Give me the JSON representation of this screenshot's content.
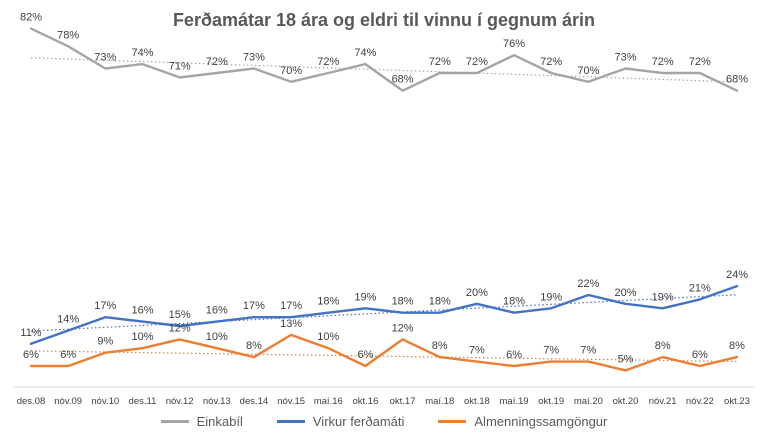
{
  "chart_data": {
    "type": "line",
    "title": "Ferðamátar 18 ára og eldri til vinnu í gegnum árin",
    "categories": [
      "des.08",
      "nóv.09",
      "nóv.10",
      "des.11",
      "nóv.12",
      "nóv.13",
      "des.14",
      "nóv.15",
      "maí.16",
      "okt.16",
      "okt.17",
      "maí.18",
      "okt.18",
      "maí.19",
      "okt.19",
      "maí.20",
      "okt.20",
      "nóv.21",
      "nóv.22",
      "okt.23"
    ],
    "series": [
      {
        "name": "Einkabíl",
        "color": "#a5a5a5",
        "values": [
          82,
          78,
          73,
          74,
          71,
          72,
          73,
          70,
          72,
          74,
          68,
          72,
          72,
          76,
          72,
          70,
          73,
          72,
          72,
          68
        ],
        "labels": [
          "82%",
          "78%",
          "73%",
          "74%",
          "71%",
          "72%",
          "73%",
          "70%",
          "72%",
          "74%",
          "68%",
          "72%",
          "72%",
          "76%",
          "72%",
          "70%",
          "73%",
          "72%",
          "72%",
          "68%"
        ]
      },
      {
        "name": "Virkur ferðamáti",
        "color": "#4472c4",
        "values": [
          11,
          14,
          17,
          16,
          15,
          16,
          17,
          17,
          18,
          19,
          18,
          18,
          20,
          18,
          19,
          22,
          20,
          19,
          21,
          24
        ],
        "labels": [
          "11%",
          "14%",
          "17%",
          "16%",
          "15%",
          "16%",
          "17%",
          "17%",
          "18%",
          "19%",
          "18%",
          "18%",
          "20%",
          "18%",
          "19%",
          "22%",
          "20%",
          "19%",
          "21%",
          "24%"
        ]
      },
      {
        "name": "Almenningssamgöngur",
        "color": "#ed7d31",
        "values": [
          6,
          6,
          9,
          10,
          12,
          10,
          8,
          13,
          10,
          6,
          12,
          8,
          7,
          6,
          7,
          7,
          5,
          8,
          6,
          8
        ],
        "labels": [
          "6%",
          "6%",
          "9%",
          "10%",
          "12%",
          "10%",
          "8%",
          "13%",
          "10%",
          "6%",
          "12%",
          "8%",
          "7%",
          "6%",
          "7%",
          "7%",
          "5%",
          "8%",
          "6%",
          "8%"
        ]
      }
    ],
    "trendlines": true,
    "grid": false,
    "legend_position": "bottom",
    "ylim": [
      0,
      85
    ]
  }
}
